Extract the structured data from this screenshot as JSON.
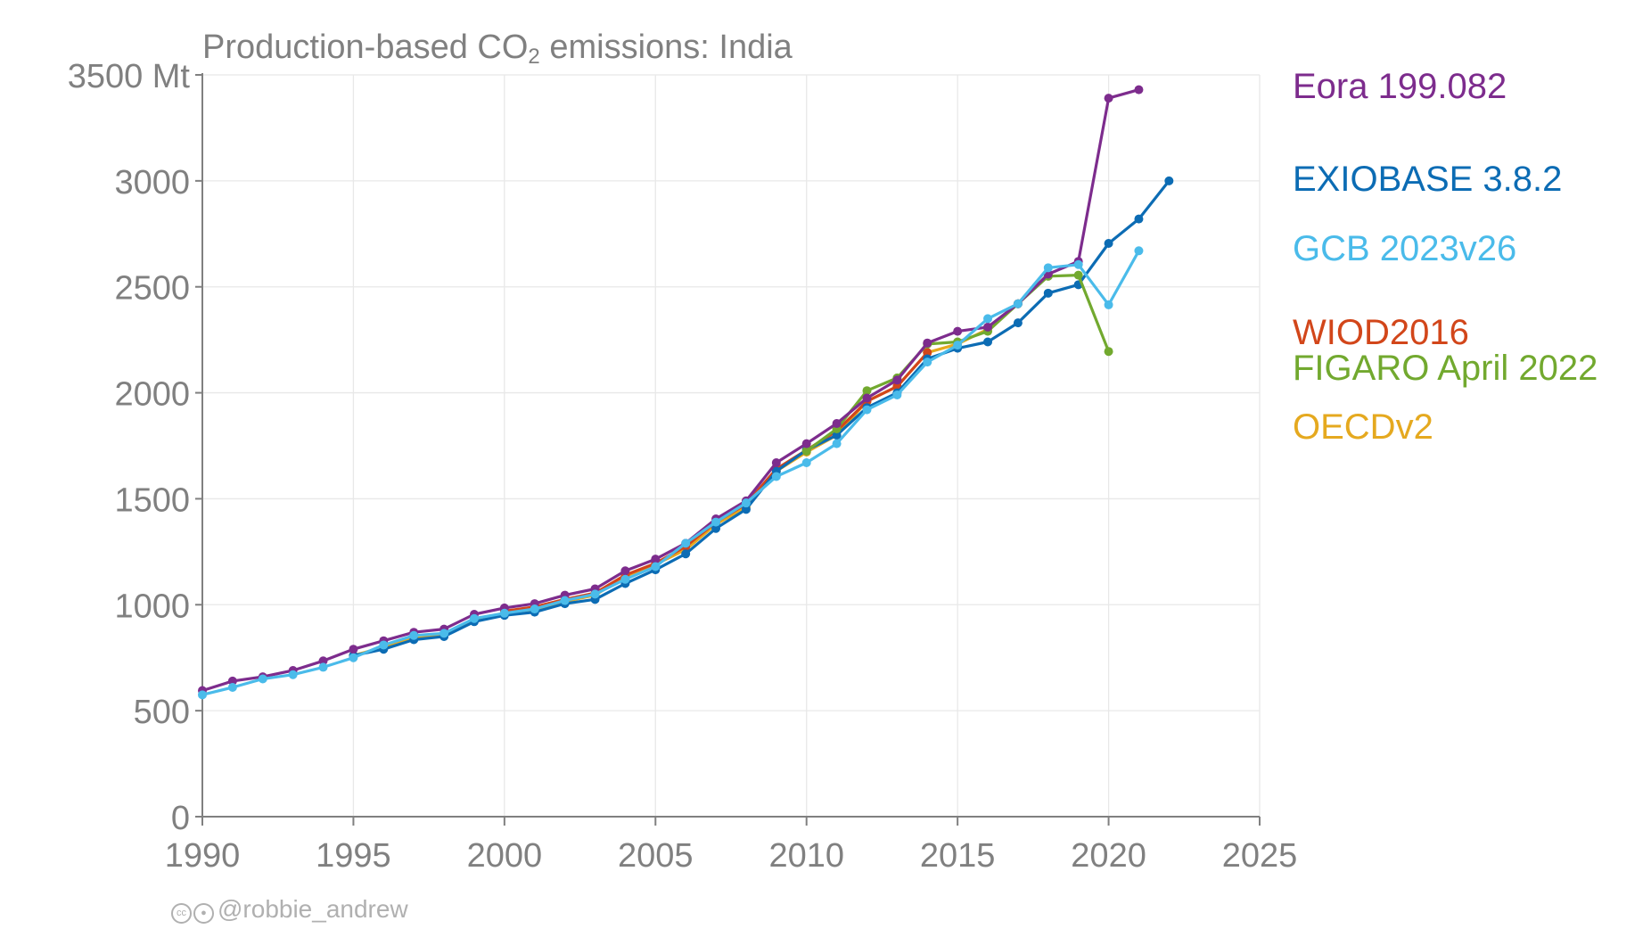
{
  "chart_data": {
    "type": "line",
    "title": "Production-based CO",
    "title_subscript": "2",
    "title_suffix": " emissions: India",
    "xlabel": "",
    "ylabel": "",
    "xlim": [
      1990,
      2025
    ],
    "ylim": [
      0,
      3500
    ],
    "x_ticks": [
      1990,
      1995,
      2000,
      2005,
      2010,
      2015,
      2020,
      2025
    ],
    "y_ticks": [
      0,
      500,
      1000,
      1500,
      2000,
      2500,
      3000,
      3500
    ],
    "y_tick_labels": [
      "0",
      "500",
      "1000",
      "1500",
      "2000",
      "2500",
      "3000",
      "3500 Mt"
    ],
    "grid": true,
    "legend_position": "right",
    "series": [
      {
        "name": "OECDv2",
        "color": "#E5A91F",
        "x": [
          1995,
          1996,
          1997,
          1998,
          1999,
          2000,
          2001,
          2002,
          2003,
          2004,
          2005,
          2006,
          2007,
          2008,
          2009,
          2010,
          2011,
          2012,
          2013,
          2014,
          2015,
          2016,
          2017,
          2018
        ],
        "y": [
          760,
          800,
          845,
          855,
          930,
          960,
          975,
          1015,
          1045,
          1135,
          1190,
          1260,
          1380,
          1460,
          1630,
          1720,
          1800,
          1960,
          2030,
          2190,
          2230,
          2300,
          2420,
          2560
        ]
      },
      {
        "name": "WIOD2016",
        "color": "#D2461A",
        "x": [
          2000,
          2001,
          2002,
          2003,
          2004,
          2005,
          2006,
          2007,
          2008,
          2009,
          2010,
          2011,
          2012,
          2013,
          2014
        ],
        "y": [
          970,
          990,
          1025,
          1055,
          1140,
          1195,
          1275,
          1390,
          1475,
          1640,
          1730,
          1820,
          1960,
          2030,
          2190
        ]
      },
      {
        "name": "EXIOBASE 3.8.2",
        "color": "#0C6CB4",
        "x": [
          1995,
          1996,
          1997,
          1998,
          1999,
          2000,
          2001,
          2002,
          2003,
          2004,
          2005,
          2006,
          2007,
          2008,
          2009,
          2010,
          2011,
          2012,
          2013,
          2014,
          2015,
          2016,
          2017,
          2018,
          2019,
          2020,
          2021,
          2022
        ],
        "y": [
          760,
          790,
          835,
          850,
          920,
          950,
          965,
          1005,
          1025,
          1100,
          1165,
          1240,
          1360,
          1450,
          1630,
          1730,
          1800,
          1930,
          2000,
          2160,
          2210,
          2240,
          2330,
          2470,
          2510,
          2705,
          2820,
          3000
        ]
      },
      {
        "name": "FIGARO April 2022",
        "color": "#72A92F",
        "x": [
          2010,
          2011,
          2012,
          2013,
          2014,
          2015,
          2016,
          2017,
          2018,
          2019,
          2020
        ],
        "y": [
          1725,
          1830,
          2010,
          2070,
          2230,
          2240,
          2290,
          2420,
          2550,
          2555,
          2195
        ]
      },
      {
        "name": "Eora 199.082",
        "color": "#7D2C8D",
        "x": [
          1990,
          1991,
          1992,
          1993,
          1994,
          1995,
          1996,
          1997,
          1998,
          1999,
          2000,
          2001,
          2002,
          2003,
          2004,
          2005,
          2006,
          2007,
          2008,
          2009,
          2010,
          2011,
          2012,
          2013,
          2014,
          2015,
          2016,
          2017,
          2018,
          2019,
          2020,
          2021
        ],
        "y": [
          595,
          640,
          660,
          690,
          735,
          790,
          830,
          870,
          885,
          955,
          985,
          1005,
          1045,
          1075,
          1160,
          1215,
          1290,
          1405,
          1490,
          1670,
          1760,
          1855,
          1975,
          2060,
          2235,
          2290,
          2310,
          2420,
          2560,
          2620,
          3390,
          3430
        ]
      },
      {
        "name": "GCB 2023v26",
        "color": "#4ABBEA",
        "x": [
          1990,
          1991,
          1992,
          1993,
          1994,
          1995,
          1996,
          1997,
          1998,
          1999,
          2000,
          2001,
          2002,
          2003,
          2004,
          2005,
          2006,
          2007,
          2008,
          2009,
          2010,
          2011,
          2012,
          2013,
          2014,
          2015,
          2016,
          2017,
          2018,
          2019,
          2020,
          2021
        ],
        "y": [
          575,
          610,
          650,
          670,
          705,
          750,
          810,
          855,
          865,
          935,
          960,
          980,
          1020,
          1050,
          1120,
          1180,
          1290,
          1390,
          1480,
          1605,
          1670,
          1760,
          1920,
          1990,
          2145,
          2225,
          2350,
          2420,
          2590,
          2605,
          2415,
          2670
        ]
      }
    ],
    "legend": [
      {
        "name": "Eora 199.082",
        "color": "#7D2C8D"
      },
      {
        "name": "EXIOBASE 3.8.2",
        "color": "#0C6CB4"
      },
      {
        "name": "GCB 2023v26",
        "color": "#4ABBEA"
      },
      {
        "name": "WIOD2016",
        "color": "#D2461A"
      },
      {
        "name": "FIGARO April 2022",
        "color": "#72A92F"
      },
      {
        "name": "OECDv2",
        "color": "#E5A91F"
      }
    ]
  },
  "credit": {
    "icons": [
      "cc-icon",
      "attribution-icon"
    ],
    "text": "@robbie_andrew"
  }
}
